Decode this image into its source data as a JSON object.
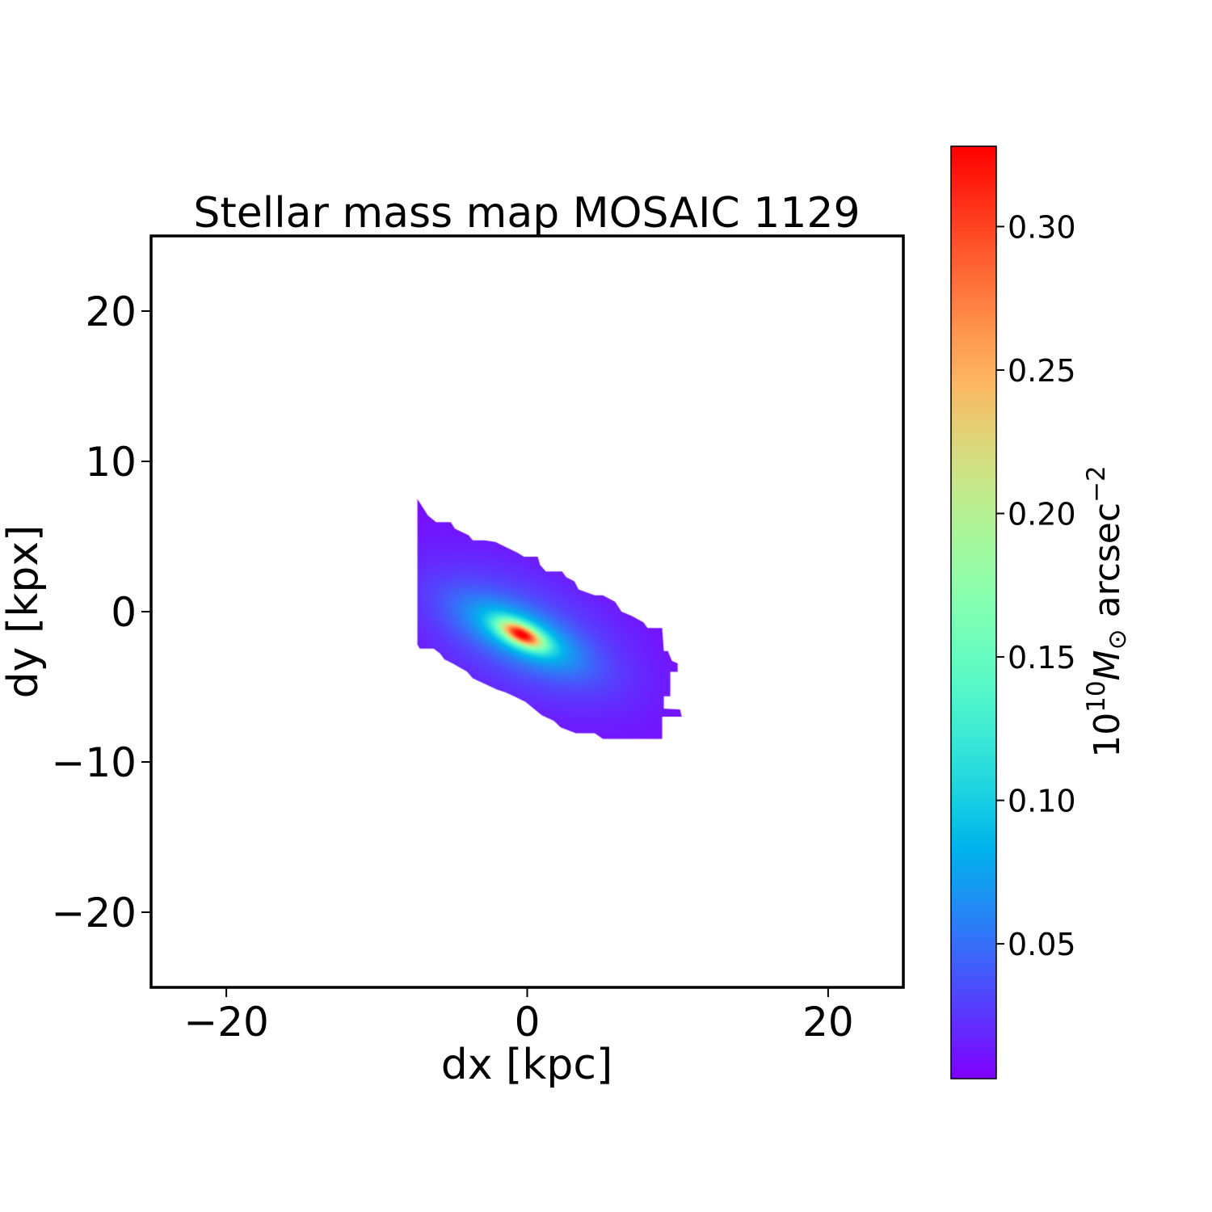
{
  "chart_data": {
    "type": "heatmap",
    "title": "Stellar mass map MOSAIC 1129",
    "xlabel": "dx [kpc]",
    "ylabel": "dy [kpx]",
    "xlim": [
      -25,
      25
    ],
    "ylim": [
      -25,
      25
    ],
    "xticks": [
      -20,
      0,
      20
    ],
    "xtick_labels": [
      "−20",
      "0",
      "20"
    ],
    "yticks": [
      20,
      10,
      0,
      -10,
      -20
    ],
    "ytick_labels": [
      "20",
      "10",
      "0",
      "−10",
      "−20"
    ],
    "grid": false,
    "colormap": "rainbow",
    "colorbar": {
      "label_base": "10",
      "label_exp": "10",
      "label_unit": "M",
      "label_sub": "⊙",
      "label_tail": " arcsec",
      "label_tail_exp": "−2",
      "range": [
        0.003,
        0.328
      ],
      "ticks": [
        0.05,
        0.1,
        0.15,
        0.2,
        0.25,
        0.3
      ],
      "tick_labels": [
        "0.05",
        "0.10",
        "0.15",
        "0.20",
        "0.25",
        "0.30"
      ]
    },
    "peak": {
      "x": -0.4,
      "y": -1.5,
      "value": 0.33
    },
    "outline_kpc": [
      [
        -7.3,
        7.5
      ],
      [
        -6.6,
        6.4
      ],
      [
        -6.05,
        5.96
      ],
      [
        -5.08,
        5.96
      ],
      [
        -4.81,
        5.52
      ],
      [
        -3.89,
        5.08
      ],
      [
        -3.62,
        4.75
      ],
      [
        -2.81,
        4.75
      ],
      [
        -2.11,
        4.64
      ],
      [
        -1.46,
        4.32
      ],
      [
        -0.65,
        3.93
      ],
      [
        -0.22,
        3.66
      ],
      [
        0.7,
        3.66
      ],
      [
        0.86,
        3.11
      ],
      [
        1.24,
        2.68
      ],
      [
        2.32,
        2.68
      ],
      [
        2.59,
        2.3
      ],
      [
        3.14,
        2.02
      ],
      [
        3.41,
        1.48
      ],
      [
        4.49,
        1.09
      ],
      [
        5.03,
        1.09
      ],
      [
        5.84,
        0.66
      ],
      [
        6.27,
        0
      ],
      [
        6.92,
        -0.27
      ],
      [
        7.73,
        -0.71
      ],
      [
        8.0,
        -1.09
      ],
      [
        8.97,
        -1.09
      ],
      [
        9.08,
        -2.62
      ],
      [
        9.35,
        -2.62
      ],
      [
        9.62,
        -3.28
      ],
      [
        10.0,
        -3.44
      ],
      [
        10.0,
        -4.0
      ],
      [
        9.51,
        -4.0
      ],
      [
        9.51,
        -5.63
      ],
      [
        9.08,
        -5.63
      ],
      [
        9.08,
        -6.45
      ],
      [
        10.16,
        -6.5
      ],
      [
        10.27,
        -6.99
      ],
      [
        8.97,
        -6.99
      ],
      [
        8.97,
        -8.47
      ],
      [
        5.03,
        -8.47
      ],
      [
        4.49,
        -8.09
      ],
      [
        3.24,
        -8.09
      ],
      [
        2.22,
        -7.7
      ],
      [
        1.78,
        -7.27
      ],
      [
        0.97,
        -6.89
      ],
      [
        0.43,
        -6.45
      ],
      [
        -0.11,
        -6.01
      ],
      [
        -0.65,
        -5.74
      ],
      [
        -1.46,
        -5.36
      ],
      [
        -2.0,
        -5.19
      ],
      [
        -2.81,
        -4.81
      ],
      [
        -3.62,
        -4.43
      ],
      [
        -4.0,
        -3.99
      ],
      [
        -4.97,
        -3.44
      ],
      [
        -5.51,
        -3.17
      ],
      [
        -5.78,
        -2.79
      ],
      [
        -6.22,
        -2.46
      ],
      [
        -7.14,
        -2.46
      ],
      [
        -7.3,
        -2.19
      ]
    ]
  }
}
